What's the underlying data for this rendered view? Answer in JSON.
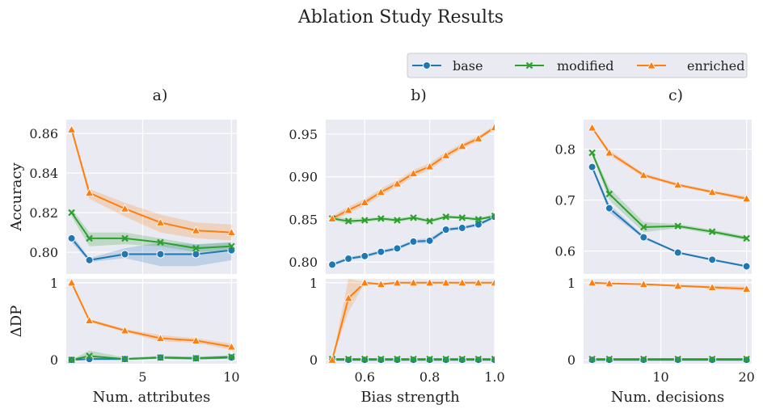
{
  "figure": {
    "title": "Ablation Study Results",
    "legend": {
      "placement": "top-right",
      "entries": [
        {
          "label": "base",
          "color": "#1f77b4",
          "marker": "circle"
        },
        {
          "label": "modified",
          "color": "#2ca02c",
          "marker": "x"
        },
        {
          "label": "enriched",
          "color": "#ff7f0e",
          "marker": "triangle"
        }
      ]
    },
    "colors": {
      "plot_background": "#eaeaf2",
      "grid": "#ffffff"
    }
  },
  "chart_data": [
    {
      "type": "line",
      "panel": "a)",
      "row": "top",
      "ylabel": "Accuracy",
      "xlabel": "",
      "xlim": [
        0.7,
        10.3
      ],
      "ylim": [
        0.789,
        0.867
      ],
      "xticks": [
        5,
        10
      ],
      "xtick_labels": [
        "",
        ""
      ],
      "yticks": [
        0.8,
        0.82,
        0.84,
        0.86
      ],
      "ytick_labels": [
        "0.80",
        "0.82",
        "0.84",
        "0.86"
      ],
      "x": [
        1,
        2,
        4,
        6,
        8,
        10
      ],
      "series": [
        {
          "name": "base",
          "values": [
            0.807,
            0.796,
            0.799,
            0.799,
            0.799,
            0.801
          ],
          "band": [
            [
              0.805,
              0.809
            ],
            [
              0.795,
              0.797
            ],
            [
              0.797,
              0.802
            ],
            [
              0.793,
              0.805
            ],
            [
              0.793,
              0.804
            ],
            [
              0.796,
              0.805
            ]
          ]
        },
        {
          "name": "modified",
          "values": [
            0.82,
            0.807,
            0.807,
            0.805,
            0.802,
            0.803
          ],
          "band": [
            [
              0.818,
              0.822
            ],
            [
              0.803,
              0.81
            ],
            [
              0.804,
              0.81
            ],
            [
              0.803,
              0.807
            ],
            [
              0.8,
              0.804
            ],
            [
              0.801,
              0.805
            ]
          ]
        },
        {
          "name": "enriched",
          "values": [
            0.862,
            0.83,
            0.822,
            0.815,
            0.811,
            0.81
          ],
          "band": [
            [
              0.861,
              0.863
            ],
            [
              0.827,
              0.832
            ],
            [
              0.818,
              0.825
            ],
            [
              0.81,
              0.819
            ],
            [
              0.807,
              0.815
            ],
            [
              0.806,
              0.814
            ]
          ]
        }
      ]
    },
    {
      "type": "line",
      "panel": "b)",
      "row": "top",
      "ylabel": "",
      "xlabel": "",
      "xlim": [
        0.48,
        1.0
      ],
      "ylim": [
        0.786,
        0.967
      ],
      "xticks": [
        0.6,
        0.8,
        1.0
      ],
      "xtick_labels": [
        "",
        "",
        ""
      ],
      "yticks": [
        0.8,
        0.85,
        0.9,
        0.95
      ],
      "ytick_labels": [
        "0.80",
        "0.85",
        "0.90",
        "0.95"
      ],
      "x": [
        0.5,
        0.55,
        0.6,
        0.65,
        0.7,
        0.75,
        0.8,
        0.85,
        0.9,
        0.95,
        1.0
      ],
      "series": [
        {
          "name": "base",
          "values": [
            0.797,
            0.804,
            0.807,
            0.812,
            0.816,
            0.824,
            0.825,
            0.838,
            0.84,
            0.844,
            0.853
          ],
          "band": [
            [
              0.795,
              0.799
            ],
            [
              0.802,
              0.806
            ],
            [
              0.805,
              0.809
            ],
            [
              0.81,
              0.814
            ],
            [
              0.814,
              0.818
            ],
            [
              0.822,
              0.826
            ],
            [
              0.822,
              0.828
            ],
            [
              0.836,
              0.84
            ],
            [
              0.838,
              0.842
            ],
            [
              0.842,
              0.846
            ],
            [
              0.851,
              0.855
            ]
          ]
        },
        {
          "name": "modified",
          "values": [
            0.851,
            0.848,
            0.849,
            0.851,
            0.849,
            0.852,
            0.848,
            0.853,
            0.852,
            0.85,
            0.854
          ],
          "band": [
            [
              0.849,
              0.853
            ],
            [
              0.845,
              0.851
            ],
            [
              0.847,
              0.851
            ],
            [
              0.849,
              0.853
            ],
            [
              0.847,
              0.851
            ],
            [
              0.85,
              0.854
            ],
            [
              0.846,
              0.85
            ],
            [
              0.851,
              0.855
            ],
            [
              0.85,
              0.854
            ],
            [
              0.848,
              0.852
            ],
            [
              0.852,
              0.856
            ]
          ]
        },
        {
          "name": "enriched",
          "values": [
            0.851,
            0.861,
            0.87,
            0.882,
            0.892,
            0.904,
            0.912,
            0.925,
            0.936,
            0.945,
            0.958
          ],
          "band": [
            [
              0.848,
              0.854
            ],
            [
              0.857,
              0.865
            ],
            [
              0.866,
              0.874
            ],
            [
              0.878,
              0.886
            ],
            [
              0.888,
              0.896
            ],
            [
              0.9,
              0.908
            ],
            [
              0.908,
              0.916
            ],
            [
              0.921,
              0.929
            ],
            [
              0.933,
              0.939
            ],
            [
              0.942,
              0.948
            ],
            [
              0.956,
              0.96
            ]
          ]
        }
      ]
    },
    {
      "type": "line",
      "panel": "c)",
      "row": "top",
      "ylabel": "",
      "xlabel": "",
      "xlim": [
        1.0,
        20.6
      ],
      "ylim": [
        0.555,
        0.858
      ],
      "xticks": [
        10,
        20
      ],
      "xtick_labels": [
        "",
        ""
      ],
      "yticks": [
        0.6,
        0.7,
        0.8
      ],
      "ytick_labels": [
        "0.6",
        "0.7",
        "0.8"
      ],
      "x": [
        2,
        4,
        8,
        12,
        16,
        20
      ],
      "series": [
        {
          "name": "base",
          "values": [
            0.765,
            0.684,
            0.627,
            0.597,
            0.583,
            0.57
          ],
          "band": [
            [
              0.761,
              0.769
            ],
            [
              0.676,
              0.692
            ],
            [
              0.624,
              0.63
            ],
            [
              0.595,
              0.599
            ],
            [
              0.581,
              0.585
            ],
            [
              0.568,
              0.572
            ]
          ]
        },
        {
          "name": "modified",
          "values": [
            0.793,
            0.712,
            0.647,
            0.649,
            0.638,
            0.625
          ],
          "band": [
            [
              0.789,
              0.797
            ],
            [
              0.7,
              0.724
            ],
            [
              0.637,
              0.657
            ],
            [
              0.645,
              0.653
            ],
            [
              0.634,
              0.642
            ],
            [
              0.621,
              0.629
            ]
          ]
        },
        {
          "name": "enriched",
          "values": [
            0.842,
            0.793,
            0.749,
            0.73,
            0.716,
            0.703
          ],
          "band": [
            [
              0.84,
              0.844
            ],
            [
              0.788,
              0.798
            ],
            [
              0.745,
              0.753
            ],
            [
              0.727,
              0.733
            ],
            [
              0.713,
              0.719
            ],
            [
              0.699,
              0.707
            ]
          ]
        }
      ]
    },
    {
      "type": "line",
      "panel": "a)",
      "row": "bottom",
      "ylabel": "ΔDP",
      "xlabel": "Num. attributes",
      "xlim": [
        0.7,
        10.3
      ],
      "ylim": [
        -0.05,
        1.05
      ],
      "xticks": [
        5,
        10
      ],
      "xtick_labels": [
        "5",
        "10"
      ],
      "yticks": [
        0,
        1
      ],
      "ytick_labels": [
        "0",
        "1"
      ],
      "x": [
        1,
        2,
        4,
        6,
        8,
        10
      ],
      "series": [
        {
          "name": "base",
          "values": [
            0.0,
            0.01,
            0.01,
            0.03,
            0.02,
            0.03
          ],
          "band": [
            [
              0.0,
              0.0
            ],
            [
              0.0,
              0.03
            ],
            [
              0.0,
              0.02
            ],
            [
              0.01,
              0.05
            ],
            [
              0.0,
              0.04
            ],
            [
              0.01,
              0.05
            ]
          ]
        },
        {
          "name": "modified",
          "values": [
            0.0,
            0.05,
            0.01,
            0.03,
            0.02,
            0.04
          ],
          "band": [
            [
              0.0,
              0.0
            ],
            [
              0.0,
              0.12
            ],
            [
              0.0,
              0.03
            ],
            [
              0.01,
              0.05
            ],
            [
              0.0,
              0.04
            ],
            [
              0.02,
              0.06
            ]
          ]
        },
        {
          "name": "enriched",
          "values": [
            1.0,
            0.51,
            0.38,
            0.28,
            0.25,
            0.17
          ],
          "band": [
            [
              1.0,
              1.0
            ],
            [
              0.49,
              0.53
            ],
            [
              0.36,
              0.4
            ],
            [
              0.24,
              0.32
            ],
            [
              0.22,
              0.28
            ],
            [
              0.13,
              0.21
            ]
          ]
        }
      ]
    },
    {
      "type": "line",
      "panel": "b)",
      "row": "bottom",
      "ylabel": "",
      "xlabel": "Bias strength",
      "xlim": [
        0.48,
        1.0
      ],
      "ylim": [
        -0.05,
        1.05
      ],
      "xticks": [
        0.6,
        0.8,
        1.0
      ],
      "xtick_labels": [
        "0.6",
        "0.8",
        "1.0"
      ],
      "yticks": [
        0,
        1
      ],
      "ytick_labels": [
        "0",
        "1"
      ],
      "x": [
        0.5,
        0.55,
        0.6,
        0.65,
        0.7,
        0.75,
        0.8,
        0.85,
        0.9,
        0.95,
        1.0
      ],
      "series": [
        {
          "name": "base",
          "values": [
            0,
            0,
            0,
            0,
            0,
            0,
            0,
            0,
            0,
            0,
            0
          ],
          "band": [
            [
              0,
              0
            ],
            [
              0,
              0
            ],
            [
              0,
              0
            ],
            [
              0,
              0
            ],
            [
              0,
              0
            ],
            [
              0,
              0
            ],
            [
              0,
              0
            ],
            [
              0,
              0
            ],
            [
              0,
              0
            ],
            [
              0,
              0
            ],
            [
              0,
              0
            ]
          ]
        },
        {
          "name": "modified",
          "values": [
            0.01,
            0.01,
            0.01,
            0.01,
            0.01,
            0.01,
            0.01,
            0.01,
            0.01,
            0.01,
            0.01
          ],
          "band": [
            [
              0.0,
              0.02
            ],
            [
              0.0,
              0.02
            ],
            [
              0.0,
              0.02
            ],
            [
              0.0,
              0.02
            ],
            [
              0.0,
              0.02
            ],
            [
              0.0,
              0.02
            ],
            [
              0.0,
              0.02
            ],
            [
              0.0,
              0.02
            ],
            [
              0.0,
              0.02
            ],
            [
              0.0,
              0.02
            ],
            [
              0.0,
              0.02
            ]
          ]
        },
        {
          "name": "enriched",
          "values": [
            0.0,
            0.8,
            1.0,
            0.98,
            1.0,
            1.0,
            1.0,
            1.0,
            1.0,
            1.0,
            1.0
          ],
          "band": [
            [
              0.0,
              0.0
            ],
            [
              0.62,
              1.05
            ],
            [
              0.99,
              1.01
            ],
            [
              0.96,
              1.0
            ],
            [
              0.99,
              1.01
            ],
            [
              0.99,
              1.01
            ],
            [
              0.99,
              1.01
            ],
            [
              0.99,
              1.01
            ],
            [
              0.99,
              1.01
            ],
            [
              0.99,
              1.01
            ],
            [
              0.99,
              1.01
            ]
          ]
        }
      ]
    },
    {
      "type": "line",
      "panel": "c)",
      "row": "bottom",
      "ylabel": "",
      "xlabel": "Num. decisions",
      "xlim": [
        1.0,
        20.6
      ],
      "ylim": [
        -0.05,
        1.05
      ],
      "xticks": [
        10,
        20
      ],
      "xtick_labels": [
        "10",
        "20"
      ],
      "yticks": [
        0,
        1
      ],
      "ytick_labels": [
        "0",
        "1"
      ],
      "x": [
        2,
        4,
        8,
        12,
        16,
        20
      ],
      "series": [
        {
          "name": "base",
          "values": [
            0.0,
            0.0,
            0.0,
            0.0,
            0.0,
            0.0
          ],
          "band": [
            [
              0,
              0
            ],
            [
              0,
              0
            ],
            [
              0,
              0
            ],
            [
              0,
              0
            ],
            [
              0,
              0
            ],
            [
              0,
              0
            ]
          ]
        },
        {
          "name": "modified",
          "values": [
            0.01,
            0.01,
            0.01,
            0.01,
            0.01,
            0.01
          ],
          "band": [
            [
              0.0,
              0.02
            ],
            [
              0.0,
              0.02
            ],
            [
              0.0,
              0.02
            ],
            [
              0.0,
              0.02
            ],
            [
              0.0,
              0.02
            ],
            [
              0.0,
              0.02
            ]
          ]
        },
        {
          "name": "enriched",
          "values": [
            1.0,
            0.99,
            0.98,
            0.96,
            0.94,
            0.92
          ],
          "band": [
            [
              0.99,
              1.01
            ],
            [
              0.98,
              1.0
            ],
            [
              0.97,
              0.99
            ],
            [
              0.95,
              0.97
            ],
            [
              0.92,
              0.96
            ],
            [
              0.89,
              0.95
            ]
          ]
        }
      ]
    }
  ]
}
